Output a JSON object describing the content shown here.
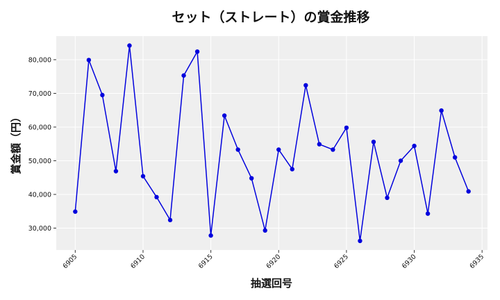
{
  "chart_data": {
    "type": "line",
    "title": "セット（ストレート）の賞金推移",
    "xlabel": "抽選回号",
    "ylabel": "賞金額（円）",
    "xlim": [
      6903.6,
      6935.4
    ],
    "ylim": [
      23500,
      87000
    ],
    "xticks": [
      6905,
      6910,
      6915,
      6920,
      6925,
      6930,
      6935
    ],
    "yticks": [
      30000,
      40000,
      50000,
      60000,
      70000,
      80000
    ],
    "ytick_labels": [
      "30,000",
      "40,000",
      "50,000",
      "60,000",
      "70,000",
      "80,000"
    ],
    "grid": true,
    "series": [
      {
        "color": "#0000dd",
        "x": [
          6905,
          6906,
          6907,
          6908,
          6909,
          6910,
          6911,
          6912,
          6913,
          6914,
          6915,
          6916,
          6917,
          6918,
          6919,
          6920,
          6921,
          6922,
          6923,
          6924,
          6925,
          6926,
          6927,
          6928,
          6929,
          6930,
          6931,
          6932,
          6933,
          6934
        ],
        "values": [
          34900,
          79900,
          69500,
          46900,
          84200,
          45400,
          39200,
          32400,
          75300,
          82400,
          27800,
          63400,
          53300,
          44800,
          29300,
          53300,
          47500,
          72400,
          54900,
          53300,
          59800,
          26200,
          55600,
          39000,
          50000,
          54400,
          34300,
          64900,
          51000,
          40900
        ]
      }
    ]
  }
}
